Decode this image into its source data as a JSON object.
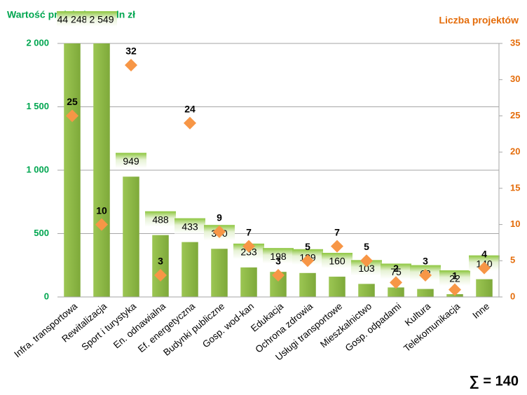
{
  "chart_data": {
    "type": "bar",
    "ylabel": "Wartość projektów w mln zł",
    "y2label": "Liczba projektów",
    "annotation": "∑ = 140",
    "categories": [
      "Infra. transportowa",
      "Rewitalizacja",
      "Sport i turystyka",
      "En. odnawialna",
      "Ef. energetyczna",
      "Budynki publiczne",
      "Gosp. wod-kan",
      "Edukacja",
      "Ochrona zdrowia",
      "Usługi transportowe",
      "Mieszkalnictwo",
      "Gosp. odpadami",
      "Kultura",
      "Telekomunikacja",
      "Inne"
    ],
    "series": [
      {
        "type": "bar",
        "color": "#8db843",
        "values": [
          44248,
          2549,
          949,
          488,
          433,
          380,
          233,
          198,
          189,
          160,
          103,
          75,
          63,
          22,
          140
        ],
        "value_labels": [
          "44 248",
          "2 549",
          "949",
          "488",
          "433",
          "380",
          "233",
          "198",
          "189",
          "160",
          "103",
          "75",
          "63",
          "22",
          "140"
        ]
      },
      {
        "type": "scatter",
        "axis": "y2",
        "color": "#f79646",
        "values": [
          25,
          10,
          32,
          3,
          24,
          9,
          7,
          3,
          5,
          7,
          5,
          2,
          3,
          1,
          4
        ]
      }
    ],
    "ylim": [
      0,
      2000
    ],
    "yticks": [
      0,
      500,
      {
        "value": 1000,
        "label": "1 000"
      },
      {
        "value": 1500,
        "label": "1 500"
      },
      {
        "value": 2000,
        "label": "2 000"
      }
    ],
    "y2lim": [
      0,
      35
    ],
    "y2ticks": [
      0,
      5,
      10,
      15,
      20,
      25,
      30,
      35
    ],
    "grid": true
  }
}
